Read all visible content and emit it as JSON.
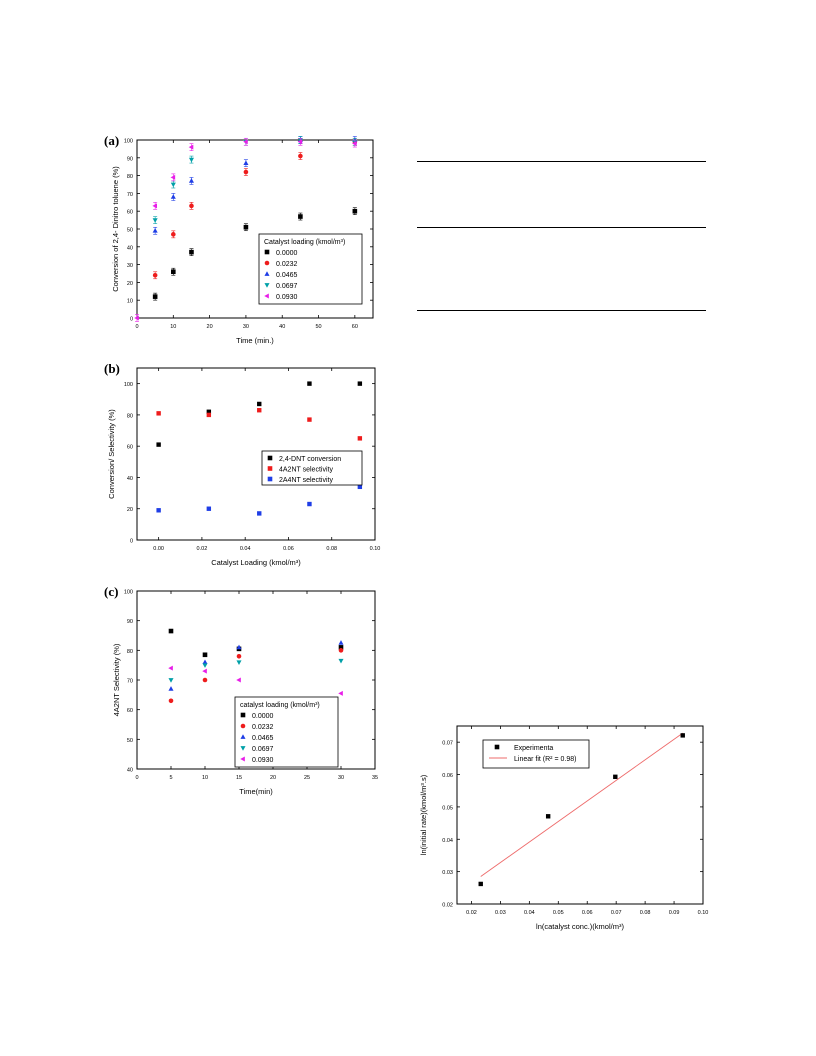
{
  "labels": {
    "a": "(a)",
    "b": "(b)",
    "c": "(c)"
  },
  "series_colors": [
    "#000000",
    "#ee1c1c",
    "#1f3ee6",
    "#00a0a8",
    "#e81ee8"
  ],
  "chart_data": [
    {
      "id": "a",
      "type": "scatter",
      "xlabel": "Time (min.)",
      "ylabel": "Conversion of 2,4- Dinitro toluene (%)",
      "xlim": [
        0,
        65
      ],
      "ylim": [
        0,
        100
      ],
      "xticks": [
        0,
        10,
        20,
        30,
        40,
        50,
        60
      ],
      "yticks": [
        0,
        10,
        20,
        30,
        40,
        50,
        60,
        70,
        80,
        90,
        100
      ],
      "legend_title": "Catalyst loading (kmol/m³)",
      "legend_position": "center-right",
      "series": [
        {
          "name": "0.0000",
          "marker": "square",
          "x": [
            5,
            10,
            15,
            30,
            45,
            60
          ],
          "y": [
            12,
            26,
            37,
            51,
            57,
            60
          ]
        },
        {
          "name": "0.0232",
          "marker": "circle",
          "x": [
            5,
            10,
            15,
            30,
            45,
            60
          ],
          "y": [
            24,
            47,
            63,
            82,
            91,
            99
          ]
        },
        {
          "name": "0.0465",
          "marker": "triangle-up",
          "x": [
            5,
            10,
            15,
            30,
            45,
            60
          ],
          "y": [
            49,
            68,
            77,
            87,
            100,
            100
          ]
        },
        {
          "name": "0.0697",
          "marker": "triangle-down",
          "x": [
            5,
            10,
            15,
            30,
            45,
            60
          ],
          "y": [
            55,
            75,
            89,
            99,
            100,
            99
          ]
        },
        {
          "name": "0.0930",
          "marker": "triangle-left",
          "x": [
            0,
            5,
            10,
            15,
            30,
            45,
            60
          ],
          "y": [
            0,
            63,
            79,
            96,
            99,
            99,
            98
          ]
        }
      ]
    },
    {
      "id": "b",
      "type": "scatter",
      "xlabel": "Catalyst Loading (kmol/m³)",
      "ylabel": "Conversion/ Selectivity (%)",
      "xlim": [
        -0.01,
        0.1
      ],
      "ylim": [
        0,
        110
      ],
      "xticks": [
        0.0,
        0.02,
        0.04,
        0.06,
        0.08,
        0.1
      ],
      "xtick_labels": [
        "0.00",
        "0.02",
        "0.04",
        "0.06",
        "0.08",
        "0.10"
      ],
      "yticks": [
        0,
        20,
        40,
        60,
        80,
        100
      ],
      "legend_position": "center-right",
      "series": [
        {
          "name": "2,4-DNT conversion",
          "marker": "square",
          "x": [
            0.0,
            0.0232,
            0.0465,
            0.0697,
            0.093
          ],
          "y": [
            61,
            82,
            87,
            100,
            100
          ]
        },
        {
          "name": "4A2NT selectivity",
          "marker": "square",
          "x": [
            0.0,
            0.0232,
            0.0465,
            0.0697,
            0.093
          ],
          "y": [
            81,
            80,
            83,
            77,
            65
          ]
        },
        {
          "name": "2A4NT selectivity",
          "marker": "square",
          "x": [
            0.0,
            0.0232,
            0.0465,
            0.0697,
            0.093
          ],
          "y": [
            19,
            20,
            17,
            23,
            34
          ]
        }
      ]
    },
    {
      "id": "c",
      "type": "scatter",
      "xlabel": "Time(min)",
      "ylabel": "4A2NT Selectivity (%)",
      "xlim": [
        0,
        35
      ],
      "ylim": [
        40,
        100
      ],
      "xticks": [
        0,
        5,
        10,
        15,
        20,
        25,
        30,
        35
      ],
      "yticks": [
        40,
        50,
        60,
        70,
        80,
        90,
        100
      ],
      "legend_title": "catalyst loading (kmol/m³)",
      "legend_position": "bottom-center",
      "series": [
        {
          "name": "0.0000",
          "marker": "square",
          "x": [
            5,
            10,
            15,
            30
          ],
          "y": [
            86.5,
            78.5,
            80.5,
            81
          ]
        },
        {
          "name": "0.0232",
          "marker": "circle",
          "x": [
            5,
            10,
            15,
            30
          ],
          "y": [
            63,
            70,
            78,
            80
          ]
        },
        {
          "name": "0.0465",
          "marker": "triangle-up",
          "x": [
            5,
            10,
            15,
            30
          ],
          "y": [
            67,
            76,
            81,
            82.5
          ]
        },
        {
          "name": "0.0697",
          "marker": "triangle-down",
          "x": [
            5,
            10,
            15,
            30
          ],
          "y": [
            70,
            75,
            76,
            76.5
          ]
        },
        {
          "name": "0.0930",
          "marker": "triangle-left",
          "x": [
            5,
            10,
            15,
            30
          ],
          "y": [
            74,
            73,
            70,
            65.5
          ]
        }
      ]
    },
    {
      "id": "d",
      "type": "scatter",
      "xlabel": "ln(catalyst conc.)(kmol/m³)",
      "ylabel": "ln(initial rate)(kmol/m³.s)",
      "xlim": [
        0.015,
        0.1
      ],
      "ylim": [
        0.02,
        0.075
      ],
      "xticks": [
        0.02,
        0.03,
        0.04,
        0.05,
        0.06,
        0.07,
        0.08,
        0.09,
        0.1
      ],
      "xtick_labels": [
        "0.02",
        "0.03",
        "0.04",
        "0.05",
        "0.06",
        "0.07",
        "0.08",
        "0.09",
        "0.10"
      ],
      "yticks": [
        0.02,
        0.03,
        0.04,
        0.05,
        0.06,
        0.07
      ],
      "ytick_labels": [
        "0.02",
        "0.03",
        "0.04",
        "0.05",
        "0.06",
        "0.07"
      ],
      "legend_position": "top-left",
      "series": [
        {
          "name": "Experimenta",
          "marker": "square",
          "x": [
            0.0232,
            0.0465,
            0.0697,
            0.093
          ],
          "y": [
            0.0262,
            0.0471,
            0.0593,
            0.0721
          ]
        }
      ],
      "fit": {
        "name": "Linear fit (R² = 0.98)",
        "color": "#ee6b6b",
        "x": [
          0.0232,
          0.093
        ],
        "y": [
          0.0285,
          0.0728
        ]
      }
    }
  ]
}
